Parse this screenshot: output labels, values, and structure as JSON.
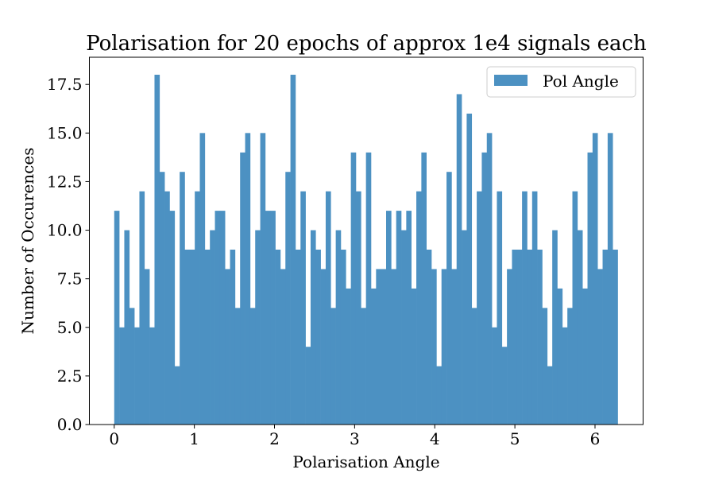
{
  "chart_data": {
    "type": "bar",
    "title": "Polarisation for 20 epochs of approx 1e4 signals each",
    "xlabel": "Polarisation Angle",
    "ylabel": "Number of Occurences",
    "xlim": [
      -0.31,
      6.6
    ],
    "ylim": [
      0,
      18.9
    ],
    "xticks": [
      0,
      1,
      2,
      3,
      4,
      5,
      6
    ],
    "xtick_labels": [
      "0",
      "1",
      "2",
      "3",
      "4",
      "5",
      "6"
    ],
    "yticks": [
      0,
      2.5,
      5,
      7.5,
      10,
      12.5,
      15,
      17.5
    ],
    "ytick_labels": [
      "0.0",
      "2.5",
      "5.0",
      "7.5",
      "10.0",
      "12.5",
      "15.0",
      "17.5"
    ],
    "bin_range": [
      0,
      6.2832
    ],
    "bin_count": 100,
    "series": [
      {
        "name": "Pol Angle",
        "color": "#4c91c2",
        "values": [
          11,
          5,
          10,
          6,
          5,
          12,
          8,
          5,
          18,
          13,
          12,
          11,
          3,
          13,
          9,
          9,
          12,
          15,
          9,
          10,
          11,
          11,
          8,
          9,
          6,
          14,
          15,
          6,
          10,
          15,
          11,
          11,
          9,
          8,
          13,
          18,
          9,
          12,
          4,
          10,
          9,
          8,
          12,
          6,
          10,
          9,
          7,
          14,
          12,
          6,
          14,
          7,
          8,
          8,
          11,
          8,
          11,
          10,
          11,
          7,
          12,
          14,
          9,
          8,
          3,
          8,
          13,
          8,
          17,
          10,
          16,
          6,
          12,
          14,
          15,
          5,
          12,
          4,
          8,
          9,
          9,
          12,
          9,
          12,
          9,
          6,
          3,
          10,
          7,
          5,
          6,
          12,
          10,
          7,
          14,
          15,
          8,
          9,
          15,
          9
        ]
      }
    ],
    "legend": {
      "position": "top-right"
    },
    "grid": false
  }
}
